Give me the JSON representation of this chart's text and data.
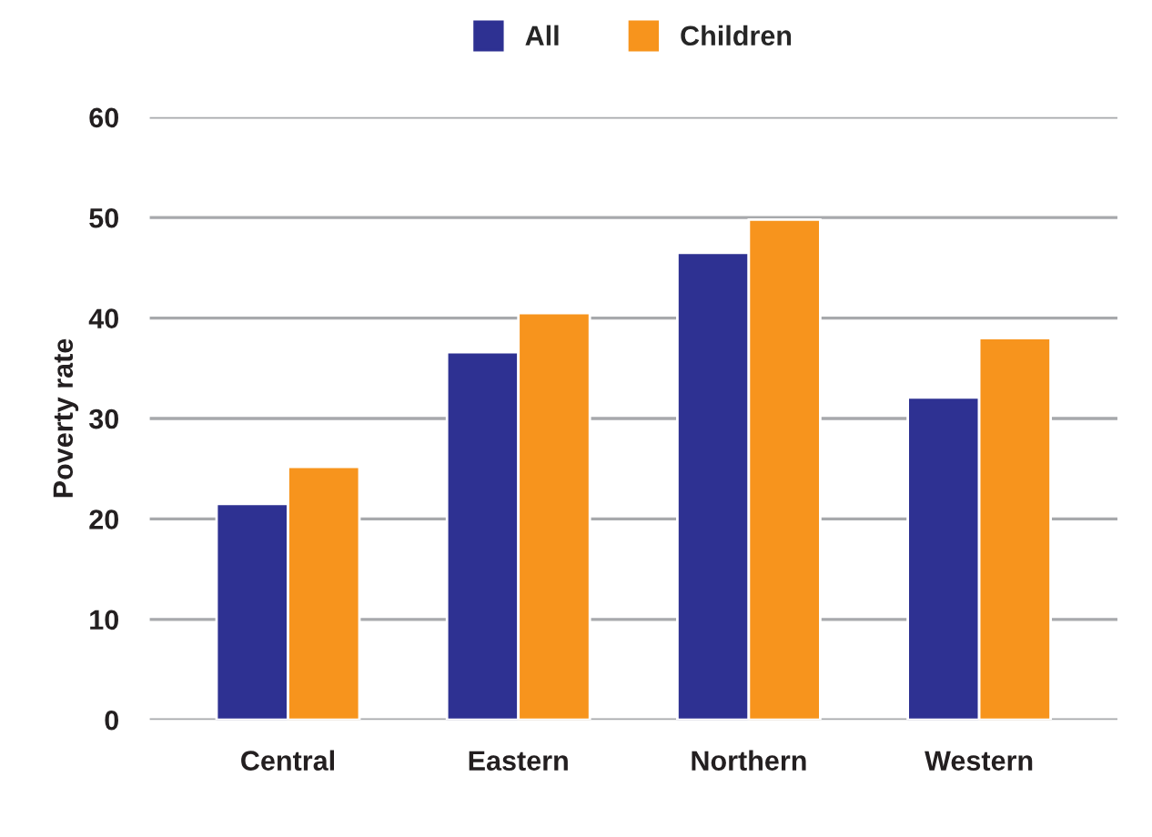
{
  "chart_data": {
    "type": "bar",
    "ylabel": "Poverty rate",
    "categories": [
      "Central",
      "Eastern",
      "Northern",
      "Western"
    ],
    "series": [
      {
        "name": "All",
        "color": "#2e3192",
        "values": [
          21.5,
          36.6,
          46.5,
          32.1
        ]
      },
      {
        "name": "Children",
        "color": "#f7941d",
        "values": [
          25.2,
          40.5,
          49.8,
          38.0
        ]
      }
    ],
    "ylim": [
      0,
      60
    ],
    "yticks": [
      0,
      10,
      20,
      30,
      40,
      50,
      60
    ],
    "grid": "y",
    "legend": "top"
  }
}
